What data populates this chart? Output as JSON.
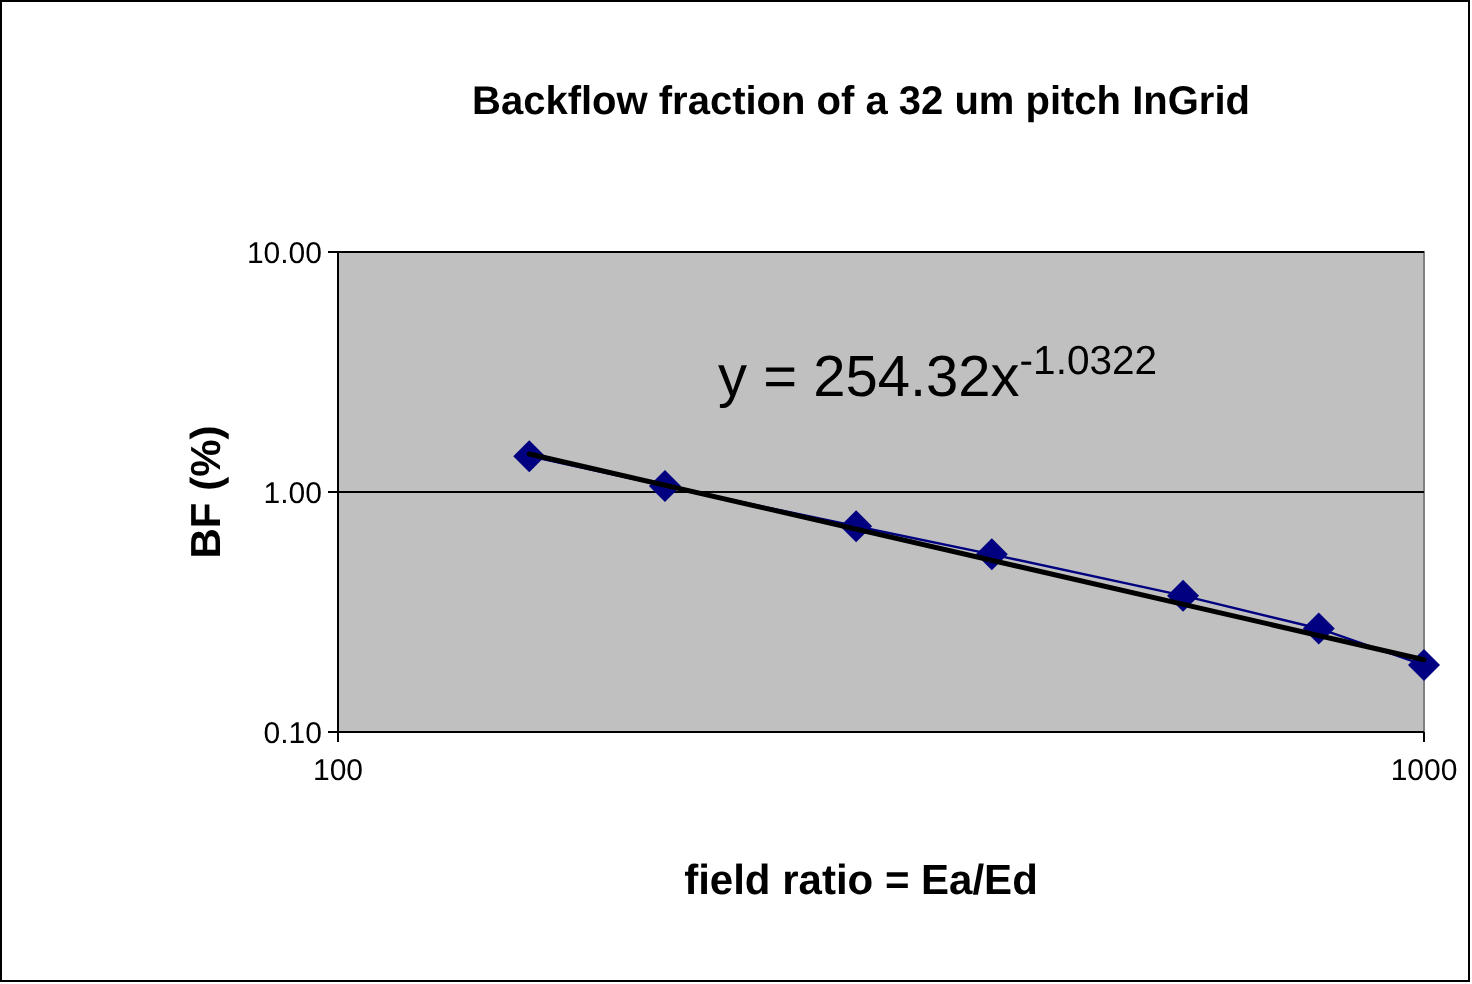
{
  "chart_data": {
    "type": "line",
    "title": "Backflow fraction of a 32 um pitch InGrid",
    "xlabel": "field ratio = Ea/Ed",
    "ylabel": "BF (%)",
    "log": "xy",
    "xlim": [
      100,
      1000
    ],
    "ylim": [
      0.1,
      10
    ],
    "xticks": [
      100,
      1000
    ],
    "yticks": [
      {
        "value": 0.1,
        "label": "0.10"
      },
      {
        "value": 1,
        "label": "1.00"
      },
      {
        "value": 10,
        "label": "10.00"
      }
    ],
    "grid": "y",
    "annotations": [
      "y = 254.32x$^{-1.0322}$"
    ],
    "series": [
      {
        "color": "#000080",
        "marker": "diamond",
        "x": [
          150,
          200,
          300,
          400,
          600,
          800,
          1000
        ],
        "values": [
          1.41,
          1.06,
          0.72,
          0.55,
          0.37,
          0.27,
          0.19
        ]
      },
      {
        "color": "#000000",
        "marker": "none",
        "x": [
          150,
          1000
        ],
        "values": [
          1.44,
          0.2
        ]
      }
    ]
  }
}
